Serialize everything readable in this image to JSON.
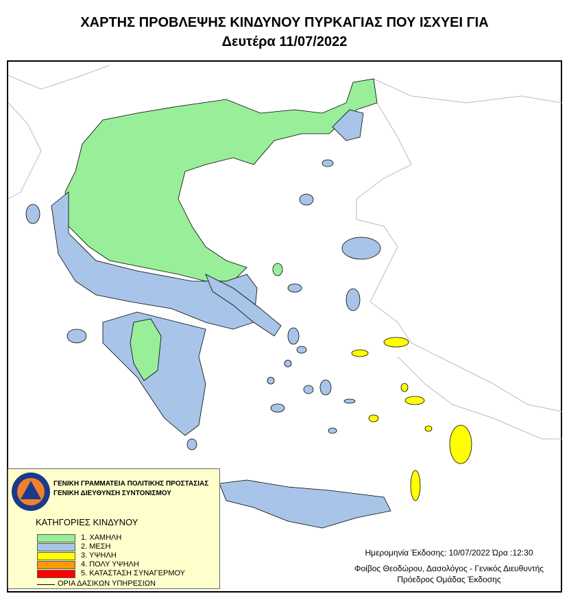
{
  "title": {
    "line1": "ΧΑΡΤΗΣ ΠΡΟΒΛΕΨΗΣ ΚΙΝΔΥΝΟΥ ΠΥΡΚΑΓΙΑΣ ΠΟΥ ΙΣΧΥΕΙ ΓΙΑ",
    "line2": "Δευτέρα 11/07/2022"
  },
  "legend": {
    "org_line1": "ΓΕΝΙΚΗ ΓΡΑΜΜΑΤΕΙΑ ΠΟΛΙΤΙΚΗΣ ΠΡΟΣΤΑΣΙΑΣ",
    "org_line2": "ΓΕΝΙΚΗ ΔΙΕΥΘΥΝΣΗ ΣΥΝΤΟΝΙΣΜΟΥ",
    "logo_text": "ΠΟΛΙΤΙΚΗ ΠΡΟΣΤΑΣΙΑ ΕΛΛΑΔΑ",
    "heading": "ΚΑΤΗΓΟΡΙΕΣ ΚΙΝΔΥΝΟΥ",
    "categories": [
      {
        "label": "1. ΧΑΜΗΛΗ",
        "color": "#99ee99"
      },
      {
        "label": "2. ΜΕΣΗ",
        "color": "#a8c4e8"
      },
      {
        "label": "3. ΥΨΗΛΗ",
        "color": "#ffff00"
      },
      {
        "label": "4. ΠΟΛΥ ΥΨΗΛΗ",
        "color": "#ff9900"
      },
      {
        "label": "5. ΚΑΤΑΣΤΑΣΗ ΣΥΝΑΓΕΡΜΟΥ",
        "color": "#ff0000"
      }
    ],
    "border_label": "ΟΡΙΑ ΔΑΣΙΚΩΝ ΥΠΗΡΕΣΙΩΝ"
  },
  "footer": {
    "issue": "Ημερομηνία Έκδοσης: 10/07/2022  Ώρα :12:30",
    "author": "Φοίβος Θεοδώρου, Δασολόγος - Γενικός Διευθυντής",
    "role": "Πρόεδρος Ομάδας Έκδοσης"
  }
}
